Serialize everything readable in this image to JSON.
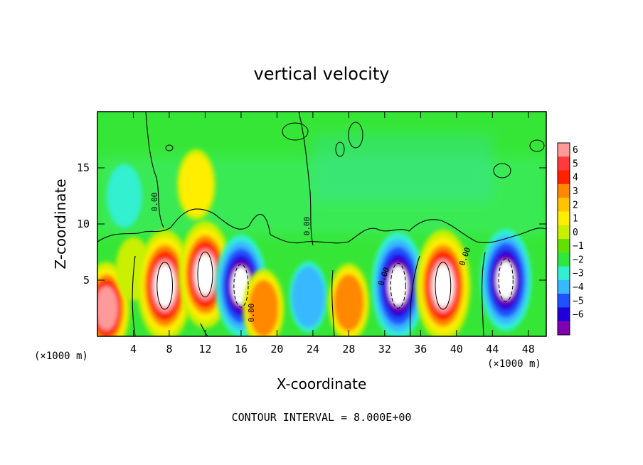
{
  "chart_data": {
    "type": "heatmap",
    "title": "vertical velocity",
    "xlabel": "X-coordinate",
    "ylabel": "Z-coordinate",
    "x_unit_left": "(×1000 m)",
    "x_unit_right": "(×1000 m)",
    "xlim": [
      0,
      50
    ],
    "ylim": [
      0,
      20
    ],
    "x_ticks": [
      4,
      8,
      12,
      16,
      20,
      24,
      28,
      32,
      36,
      40,
      44,
      48
    ],
    "y_ticks": [
      5,
      10,
      15
    ],
    "colorbar": {
      "ticks": [
        6,
        5,
        4,
        3,
        2,
        1,
        0,
        -1,
        -2,
        -3,
        -4,
        -5,
        -6
      ],
      "colors": [
        "#ff9a9a",
        "#ff3a3a",
        "#ff2200",
        "#ff8800",
        "#ffc400",
        "#ffee00",
        "#c8f000",
        "#64e000",
        "#2ee840",
        "#30f0d0",
        "#38b8ff",
        "#2050ff",
        "#2000d8",
        "#8000b0"
      ]
    },
    "contour_interval_text": "CONTOUR INTERVAL = 8.000E+00",
    "contour_label": "0.00",
    "cells": [
      {
        "x": 1,
        "z": 2.5,
        "w": 8
      },
      {
        "x": 4,
        "z": 6,
        "w": 2
      },
      {
        "x": 7.5,
        "z": 4.5,
        "w": 12
      },
      {
        "x": 12,
        "z": 5.5,
        "w": 11
      },
      {
        "x": 11,
        "z": 13.5,
        "w": 3.5
      },
      {
        "x": 16,
        "z": 4.5,
        "w": -10
      },
      {
        "x": 18.5,
        "z": 2.5,
        "w": 5
      },
      {
        "x": 23.5,
        "z": 3.5,
        "w": -3.5
      },
      {
        "x": 28,
        "z": 3,
        "w": 5
      },
      {
        "x": 33.5,
        "z": 4.5,
        "w": -11
      },
      {
        "x": 38.5,
        "z": 4.5,
        "w": 14
      },
      {
        "x": 45.5,
        "z": 5,
        "w": -10
      },
      {
        "x": 3,
        "z": 12.5,
        "w": -2
      }
    ]
  }
}
